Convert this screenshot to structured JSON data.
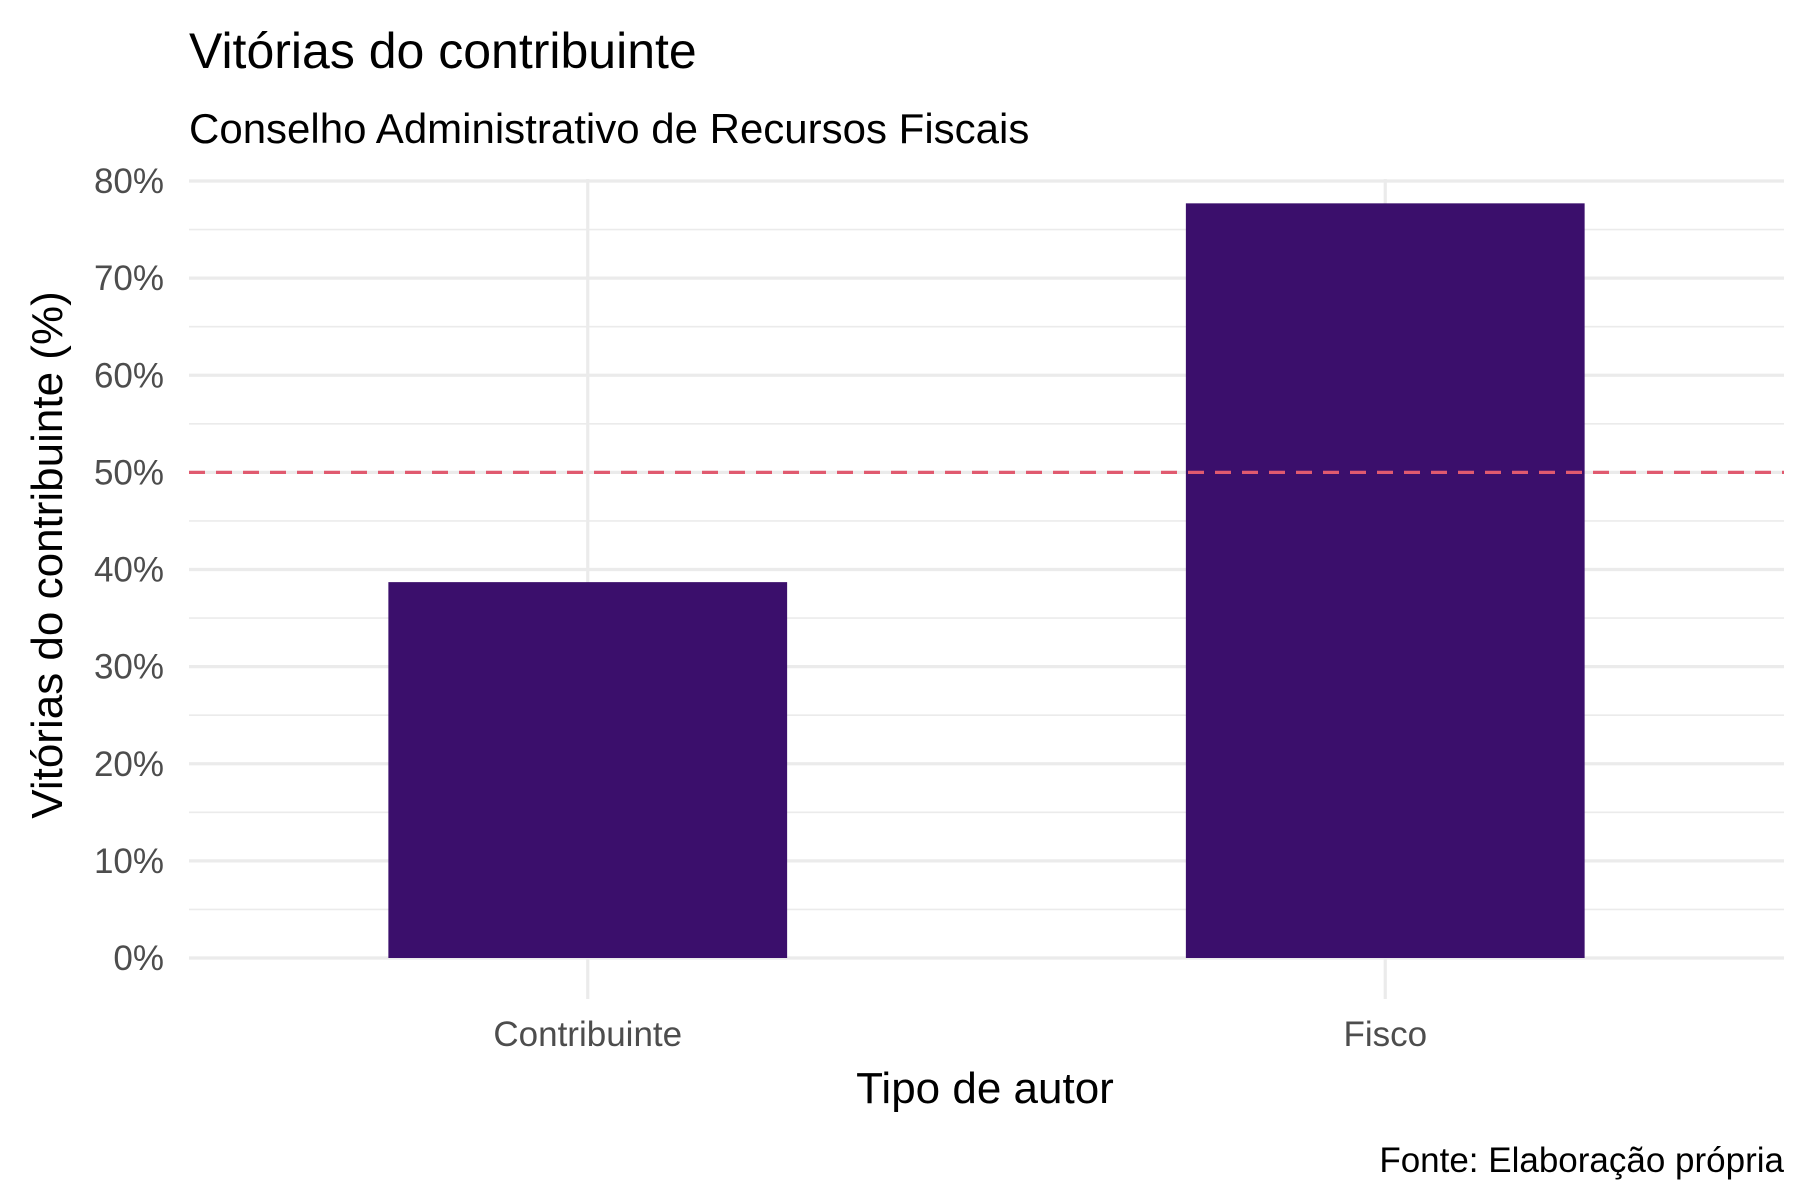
{
  "chart_data": {
    "type": "bar",
    "title": "Vitórias do contribuinte",
    "subtitle": "Conselho Administrativo de Recursos Fiscais",
    "xlabel": "Tipo de autor",
    "ylabel": "Vitórias do contribuinte (%)",
    "caption": "Fonte: Elaboração própria",
    "categories": [
      "Contribuinte",
      "Fisco"
    ],
    "values": [
      38.7,
      77.7
    ],
    "ylim": [
      0,
      80
    ],
    "yticks": [
      "0%",
      "10%",
      "20%",
      "30%",
      "40%",
      "50%",
      "60%",
      "70%",
      "80%"
    ],
    "reference_line": {
      "y": 50,
      "style": "dashed",
      "color": "#e05a6f"
    },
    "bar_color": "#3b0f6c",
    "grid": true,
    "legend": "none"
  }
}
